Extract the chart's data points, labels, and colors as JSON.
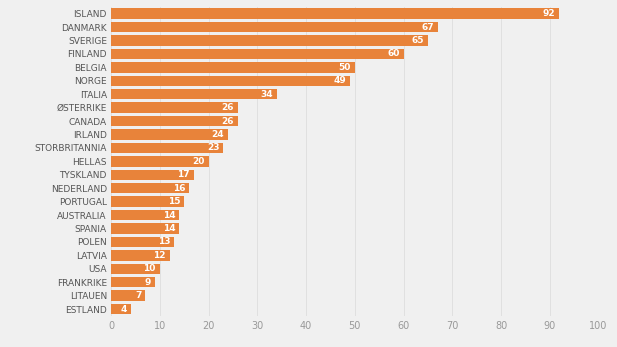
{
  "countries": [
    "ISLAND",
    "DANMARK",
    "SVERIGE",
    "FINLAND",
    "BELGIA",
    "NORGE",
    "ITALIA",
    "ØSTERRIKE",
    "CANADA",
    "IRLAND",
    "STORBRITANNIA",
    "HELLAS",
    "TYSKLAND",
    "NEDERLAND",
    "PORTUGAL",
    "AUSTRALIA",
    "SPANIA",
    "POLEN",
    "LATVIA",
    "USA",
    "FRANKRIKE",
    "LITAUEN",
    "ESTLAND"
  ],
  "values": [
    92,
    67,
    65,
    60,
    50,
    49,
    34,
    26,
    26,
    24,
    23,
    20,
    17,
    16,
    15,
    14,
    14,
    13,
    12,
    10,
    9,
    7,
    4
  ],
  "bar_color": "#E8833A",
  "background_color": "#F0F0F0",
  "label_color": "#FFFFFF",
  "tick_color": "#999999",
  "grid_color": "#DDDDDD",
  "country_label_color": "#555555",
  "xlim": [
    0,
    100
  ],
  "xticks": [
    0,
    10,
    20,
    30,
    40,
    50,
    60,
    70,
    80,
    90,
    100
  ],
  "bar_height": 0.78,
  "label_fontsize": 6.5,
  "tick_fontsize": 7,
  "country_fontsize": 6.5
}
